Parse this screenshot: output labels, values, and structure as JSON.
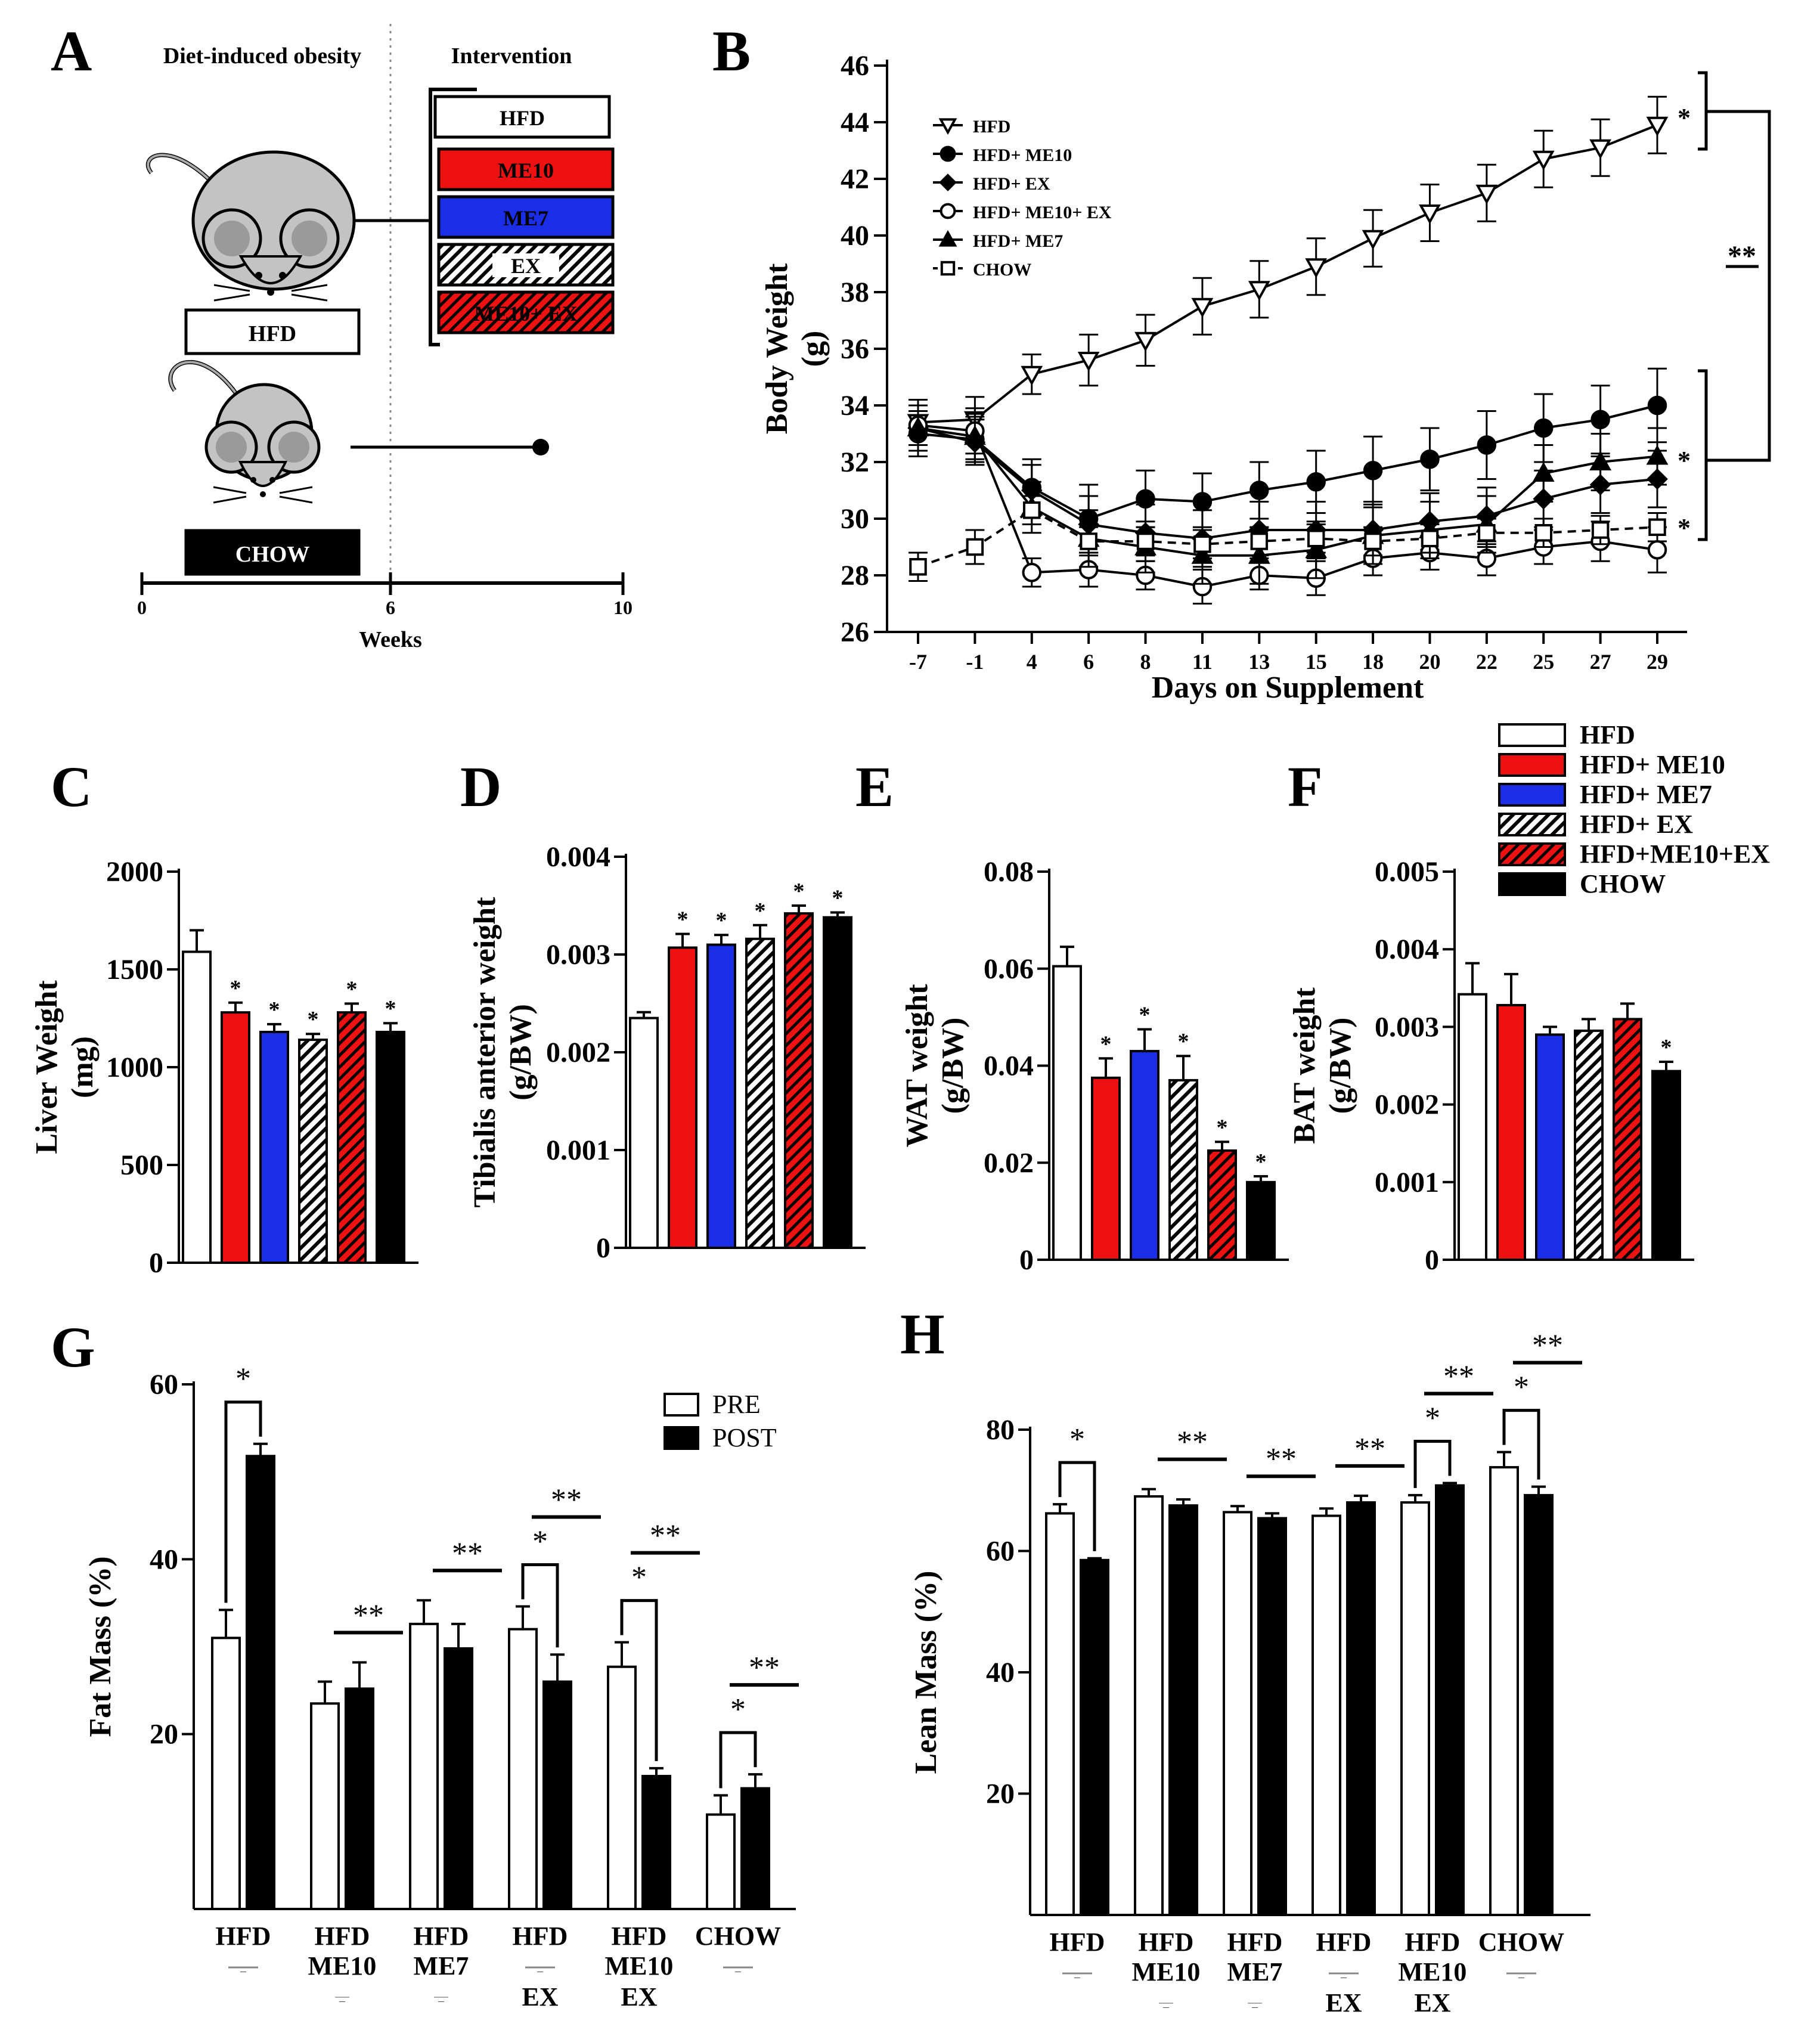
{
  "colors": {
    "hfd": "#ffffff",
    "me10": "#ee1111",
    "me7": "#1a2ee8",
    "ex_hatch": "#000000",
    "me10ex_bg": "#ee1111",
    "chow": "#000000",
    "pre": "#ffffff",
    "post": "#000000"
  },
  "panel_letters": [
    "A",
    "B",
    "C",
    "D",
    "E",
    "F",
    "G",
    "H"
  ],
  "panel_a": {
    "title_left": "Diet-induced obesity",
    "title_right": "Intervention",
    "hfd_box": "HFD",
    "chow_box": "CHOW",
    "interventions": [
      {
        "key": "hfd",
        "label": "HFD"
      },
      {
        "key": "me10",
        "label": "ME10"
      },
      {
        "key": "me7",
        "label": "ME7"
      },
      {
        "key": "ex",
        "label": "EX"
      },
      {
        "key": "me10ex",
        "label": "ME10+ EX"
      }
    ],
    "timeline_ticks": [
      "0",
      "6",
      "10"
    ],
    "timeline_label": "Weeks",
    "mouse_icon": "mouse-icon"
  },
  "chart_data": [
    {
      "id": "B",
      "type": "line",
      "title": "",
      "xlabel": "Days on Supplement",
      "ylabel": "Body Weight (g)",
      "ylabel_lines": [
        "Body Weight",
        "(g)"
      ],
      "x": [
        "-7",
        "-1",
        "4",
        "6",
        "8",
        "11",
        "13",
        "15",
        "18",
        "20",
        "22",
        "25",
        "27",
        "29"
      ],
      "ylim": [
        26,
        46
      ],
      "yticks": [
        26,
        28,
        30,
        32,
        34,
        36,
        38,
        40,
        42,
        44,
        46
      ],
      "series": [
        {
          "name": "HFD",
          "marker": "triangle-down-open",
          "dashed": false,
          "values": [
            33.4,
            33.5,
            35.1,
            35.6,
            36.3,
            37.5,
            38.1,
            38.9,
            39.9,
            40.8,
            41.5,
            42.7,
            43.1,
            43.9
          ],
          "errors": [
            0.8,
            0.8,
            0.7,
            0.9,
            0.9,
            1.0,
            1.0,
            1.0,
            1.0,
            1.0,
            1.0,
            1.0,
            1.0,
            1.0
          ]
        },
        {
          "name": "HFD+ ME10",
          "marker": "circle-filled",
          "dashed": false,
          "values": [
            33.0,
            32.8,
            31.1,
            30.0,
            30.7,
            30.6,
            31.0,
            31.3,
            31.7,
            32.1,
            32.6,
            33.2,
            33.5,
            34.0
          ],
          "errors": [
            0.8,
            0.8,
            1.0,
            1.2,
            1.0,
            1.0,
            1.0,
            1.1,
            1.2,
            1.1,
            1.2,
            1.2,
            1.2,
            1.3
          ]
        },
        {
          "name": "HFD+ EX",
          "marker": "diamond-filled",
          "dashed": false,
          "values": [
            33.2,
            32.7,
            31.0,
            29.8,
            29.5,
            29.3,
            29.6,
            29.6,
            29.6,
            29.9,
            30.1,
            30.7,
            31.2,
            31.4
          ],
          "errors": [
            0.8,
            0.8,
            0.9,
            1.0,
            1.0,
            1.0,
            1.0,
            1.0,
            1.0,
            1.0,
            1.0,
            1.0,
            1.0,
            1.0
          ]
        },
        {
          "name": "HFD+ ME10+ EX",
          "marker": "circle-open",
          "dashed": false,
          "values": [
            33.3,
            33.1,
            28.1,
            28.2,
            28.0,
            27.6,
            28.0,
            27.9,
            28.6,
            28.8,
            28.6,
            29.0,
            29.2,
            28.9
          ],
          "errors": [
            0.9,
            0.8,
            0.5,
            0.6,
            0.5,
            0.6,
            0.5,
            0.6,
            0.6,
            0.6,
            0.6,
            0.6,
            0.7,
            0.8
          ]
        },
        {
          "name": "HFD+ ME7",
          "marker": "triangle-up-filled",
          "dashed": false,
          "values": [
            33.2,
            32.9,
            30.4,
            29.3,
            29.0,
            28.7,
            28.7,
            28.9,
            29.4,
            29.6,
            29.8,
            31.6,
            32.0,
            32.2
          ],
          "errors": [
            0.8,
            0.8,
            0.9,
            1.0,
            0.9,
            1.0,
            1.0,
            1.0,
            1.0,
            1.0,
            1.0,
            1.0,
            1.0,
            1.0
          ]
        },
        {
          "name": "CHOW",
          "marker": "square-open",
          "dashed": true,
          "values": [
            28.3,
            29.0,
            30.3,
            29.2,
            29.2,
            29.1,
            29.2,
            29.3,
            29.2,
            29.3,
            29.5,
            29.5,
            29.6,
            29.7
          ],
          "errors": [
            0.5,
            0.6,
            0.5,
            0.5,
            0.5,
            0.5,
            0.5,
            0.5,
            0.5,
            0.5,
            0.5,
            0.5,
            0.5,
            0.5
          ]
        }
      ],
      "annotations": {
        "star": "*",
        "double_star": "**"
      }
    },
    {
      "id": "C",
      "type": "bar",
      "ylabel": "Liver Weight (mg)",
      "ylabel_lines": [
        "Liver Weight",
        "(mg)"
      ],
      "ylim": [
        0,
        2000
      ],
      "yticks": [
        "0",
        "500",
        "1000",
        "1500",
        "2000"
      ],
      "ytick_values": [
        0,
        500,
        1000,
        1500,
        2000
      ],
      "categories": [
        "HFD",
        "HFD+ ME10",
        "HFD+ ME7",
        "HFD+ EX",
        "HFD+ME10+EX",
        "CHOW"
      ],
      "values": [
        1590,
        1280,
        1180,
        1140,
        1280,
        1180
      ],
      "errors": [
        110,
        50,
        40,
        30,
        45,
        45
      ],
      "stars": [
        "",
        "*",
        "*",
        "*",
        "*",
        "*"
      ]
    },
    {
      "id": "D",
      "type": "bar",
      "ylabel": "Tibialis anterior weight (g/BW)",
      "ylabel_lines": [
        "Tibialis anterior weight",
        "(g/BW)"
      ],
      "ylim": [
        0,
        0.004
      ],
      "yticks": [
        "0",
        "0.001",
        "0.002",
        "0.003",
        "0.004"
      ],
      "ytick_values": [
        0,
        0.001,
        0.002,
        0.003,
        0.004
      ],
      "categories": [
        "HFD",
        "HFD+ ME10",
        "HFD+ ME7",
        "HFD+ EX",
        "HFD+ME10+EX",
        "CHOW"
      ],
      "values": [
        0.00235,
        0.00307,
        0.0031,
        0.00316,
        0.00342,
        0.00338
      ],
      "errors": [
        6e-05,
        0.00014,
        0.0001,
        0.00014,
        8e-05,
        5e-05
      ],
      "stars": [
        "",
        "*",
        "*",
        "*",
        "*",
        "*"
      ]
    },
    {
      "id": "E",
      "type": "bar",
      "ylabel": "WAT weight (g/BW)",
      "ylabel_lines": [
        "WAT weight",
        "(g/BW)"
      ],
      "ylim": [
        0,
        0.08
      ],
      "yticks": [
        "0",
        "0.02",
        "0.04",
        "0.06",
        "0.08"
      ],
      "ytick_values": [
        0,
        0.02,
        0.04,
        0.06,
        0.08
      ],
      "categories": [
        "HFD",
        "HFD+ ME10",
        "HFD+ ME7",
        "HFD+ EX",
        "HFD+ME10+EX",
        "CHOW"
      ],
      "values": [
        0.0605,
        0.0375,
        0.043,
        0.037,
        0.0225,
        0.016
      ],
      "errors": [
        0.004,
        0.004,
        0.0045,
        0.005,
        0.0018,
        0.0012
      ],
      "stars": [
        "",
        "*",
        "*",
        "*",
        "*",
        "*"
      ]
    },
    {
      "id": "F",
      "type": "bar",
      "ylabel": "BAT weight (g/BW)",
      "ylabel_lines": [
        "BAT weight",
        "(g/BW)"
      ],
      "ylim": [
        0,
        0.005
      ],
      "yticks": [
        "0",
        "0.001",
        "0.002",
        "0.003",
        "0.004",
        "0.005"
      ],
      "ytick_values": [
        0,
        0.001,
        0.002,
        0.003,
        0.004,
        0.005
      ],
      "categories": [
        "HFD",
        "HFD+ ME10",
        "HFD+ ME7",
        "HFD+ EX",
        "HFD+ME10+EX",
        "CHOW"
      ],
      "values": [
        0.00342,
        0.00328,
        0.0029,
        0.00295,
        0.0031,
        0.00243
      ],
      "errors": [
        0.0004,
        0.0004,
        0.0001,
        0.00015,
        0.0002,
        0.00012
      ],
      "stars": [
        "",
        "",
        "",
        "",
        "",
        "*"
      ],
      "legend": [
        "HFD",
        "HFD+ ME10",
        "HFD+ ME7",
        "HFD+ EX",
        "HFD+ME10+EX",
        "CHOW"
      ]
    },
    {
      "id": "G",
      "type": "bar",
      "ylabel": "Fat Mass (%)",
      "ylim": [
        0,
        60
      ],
      "yticks": [
        "20",
        "40",
        "60"
      ],
      "ytick_values": [
        20,
        40,
        60
      ],
      "legend": [
        "PRE",
        "POST"
      ],
      "groups": [
        {
          "line1": "HFD",
          "line2": "—",
          "line3": ""
        },
        {
          "line1": "HFD",
          "line2": "ME10",
          "line3": "—"
        },
        {
          "line1": "HFD",
          "line2": "ME7",
          "line3": "—"
        },
        {
          "line1": "HFD",
          "line2": "—",
          "line3": "EX"
        },
        {
          "line1": "HFD",
          "line2": "ME10",
          "line3": "EX"
        },
        {
          "line1": "CHOW",
          "line2": "—",
          "line3": ""
        }
      ],
      "series": [
        {
          "name": "PRE",
          "values": [
            31.0,
            23.5,
            32.6,
            32.0,
            27.7,
            10.8
          ],
          "errors": [
            3.2,
            2.5,
            2.7,
            2.6,
            2.8,
            2.2
          ]
        },
        {
          "name": "POST",
          "values": [
            51.8,
            25.2,
            29.8,
            26.0,
            15.2,
            13.8
          ],
          "errors": [
            1.4,
            3.0,
            2.8,
            3.1,
            0.9,
            1.6
          ]
        }
      ],
      "sig_bracket": [
        "*",
        "",
        "",
        "*",
        "*",
        "*"
      ],
      "sig_bar": [
        "",
        "**",
        "**",
        "**",
        "**",
        "**"
      ]
    },
    {
      "id": "H",
      "type": "bar",
      "ylabel": "Lean Mass (%)",
      "ylim": [
        0,
        80
      ],
      "yticks": [
        "20",
        "40",
        "60",
        "80"
      ],
      "ytick_values": [
        20,
        40,
        60,
        80
      ],
      "groups": [
        {
          "line1": "HFD",
          "line2": "—",
          "line3": ""
        },
        {
          "line1": "HFD",
          "line2": "ME10",
          "line3": "—"
        },
        {
          "line1": "HFD",
          "line2": "ME7",
          "line3": "—"
        },
        {
          "line1": "HFD",
          "line2": "—",
          "line3": "EX"
        },
        {
          "line1": "HFD",
          "line2": "ME10",
          "line3": "EX"
        },
        {
          "line1": "CHOW",
          "line2": "—",
          "line3": ""
        }
      ],
      "series": [
        {
          "name": "PRE",
          "values": [
            66.2,
            69.0,
            66.4,
            65.8,
            68.0,
            73.8
          ],
          "errors": [
            1.5,
            1.2,
            1.0,
            1.2,
            1.2,
            2.5
          ]
        },
        {
          "name": "POST",
          "values": [
            58.5,
            67.5,
            65.4,
            68.0,
            70.8,
            69.2
          ],
          "errors": [
            0.3,
            1.0,
            0.8,
            1.1,
            0.4,
            1.4
          ]
        }
      ],
      "sig_bracket": [
        "*",
        "",
        "",
        "",
        "*",
        "*"
      ],
      "sig_bar": [
        "",
        "**",
        "**",
        "**",
        "**",
        "**"
      ]
    }
  ]
}
